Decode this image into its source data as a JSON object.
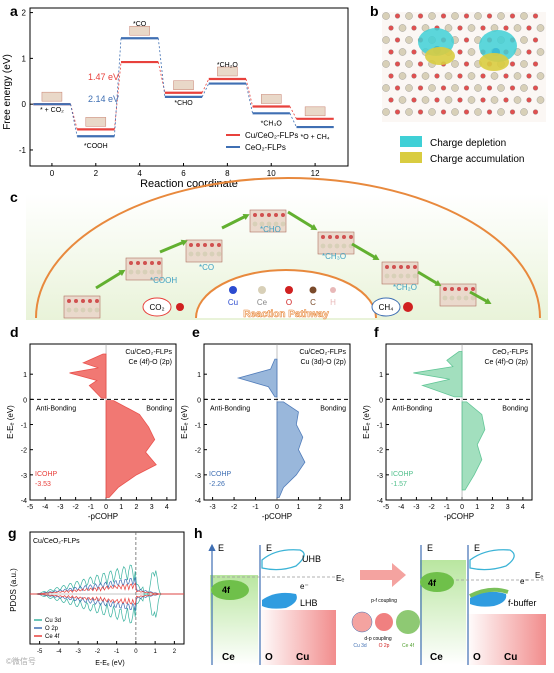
{
  "panel_labels": {
    "a": "a",
    "b": "b",
    "c": "c",
    "d": "d",
    "e": "e",
    "f": "f",
    "g": "g",
    "h": "h"
  },
  "colors": {
    "red": "#e8413c",
    "blue": "#3f6fb3",
    "green": "#52c08c",
    "teal": "#3bb3a0",
    "cyan_depletion": "#3fd0d6",
    "yellow_accumulation": "#d9cc40",
    "orange_arc": "#e8893d",
    "arrow_green": "#62b030",
    "grey": "#888888"
  },
  "panel_a": {
    "ylabel": "Free energy (eV)",
    "xlabel": "Reaction coordinate",
    "yticks": [
      "2",
      "1",
      "0",
      "-1"
    ],
    "xticks": [
      "0",
      "2",
      "4",
      "6",
      "8",
      "10",
      "12"
    ],
    "state_labels": [
      "* + CO₂",
      "*COOH",
      "*CO",
      "*CHO",
      "*CH₂O",
      "*CH₃O",
      "*O + CH₄"
    ],
    "barrier_labels": [
      "1.47 eV",
      "2.14 eV"
    ],
    "legend": [
      "Cu/CeO₂-FLPs",
      "CeO₂-FLPs"
    ]
  },
  "chart_data": {
    "type": "line",
    "x": [
      0,
      2,
      4,
      6,
      8,
      10,
      12
    ],
    "series": [
      {
        "name": "Cu/CeO₂-FLPs",
        "values": [
          0.0,
          -0.55,
          0.92,
          0.25,
          0.55,
          -0.05,
          -0.32
        ]
      },
      {
        "name": "CeO₂-FLPs",
        "values": [
          0.0,
          -0.7,
          1.44,
          0.16,
          0.45,
          -0.2,
          -0.5
        ]
      }
    ],
    "xlabel": "Reaction coordinate",
    "ylabel": "Free energy (eV)",
    "xlim": [
      -1,
      13.5
    ],
    "ylim": [
      -1.35,
      2.1
    ]
  },
  "panel_b": {
    "legend": [
      "Charge depletion",
      "Charge accumulation"
    ]
  },
  "panel_c": {
    "steps": [
      "*COOH",
      "*CO",
      "*CHO",
      "*CH₃O",
      "*CH₂O"
    ],
    "banner": "Reaction Pathway",
    "atoms": [
      "Cu",
      "Ce",
      "O",
      "C",
      "H"
    ],
    "co2": "CO₂",
    "ch4": "CH₄"
  },
  "cohp_common": {
    "ylabel": "E-Eₑ (eV)",
    "xlabel": "-pCOHP",
    "yticks": [
      "1",
      "0",
      "-1",
      "-2",
      "-3",
      "-4"
    ],
    "anti": "Anti-Bonding",
    "bond": "Bonding",
    "icohp_label": "ICOHP"
  },
  "panel_d": {
    "title1": "Cu/CeO₂-FLPs",
    "title2": "Ce (4f)-O (2p)",
    "icohp": "-3.53",
    "xticks": [
      "-5",
      "-4",
      "-3",
      "-2",
      "-1",
      "0",
      "1",
      "2",
      "3",
      "4"
    ]
  },
  "panel_e": {
    "title1": "Cu/CeO₂-FLPs",
    "title2": "Cu (3d)-O (2p)",
    "icohp": "-2.26",
    "xticks": [
      "-3",
      "-2",
      "-1",
      "0",
      "1",
      "2",
      "3"
    ]
  },
  "panel_f": {
    "title1": "CeO₂-FLPs",
    "title2": "Ce (4f)-O (2p)",
    "icohp": "-1.57",
    "xticks": [
      "-5",
      "-4",
      "-3",
      "-2",
      "-1",
      "0",
      "1",
      "2",
      "3",
      "4"
    ]
  },
  "panel_g": {
    "title": "Cu/CeO₂-FLPs",
    "ylabel": "PDOS (a.u.)",
    "xlabel": "E-Eₑ (eV)",
    "legend": [
      "Cu 3d",
      "O 2p",
      "Ce 4f"
    ],
    "xticks": [
      "-5",
      "-4",
      "-3",
      "-2",
      "-1",
      "0",
      "1",
      "2"
    ]
  },
  "panel_h": {
    "E": "E",
    "EF": "Eₑ",
    "UHB": "UHB",
    "LHB": "LHB",
    "f4": "4f",
    "Ce": "Ce",
    "O": "O",
    "Cu": "Cu",
    "electron": "e⁻",
    "fbuffer": "f-buffer",
    "pf": "p-f coupling",
    "dp": "d-p coupling",
    "cu3d": "Cu 3d",
    "o2p": "O 2p",
    "ce4f": "Ce 4f"
  },
  "watermark": "©微信号"
}
